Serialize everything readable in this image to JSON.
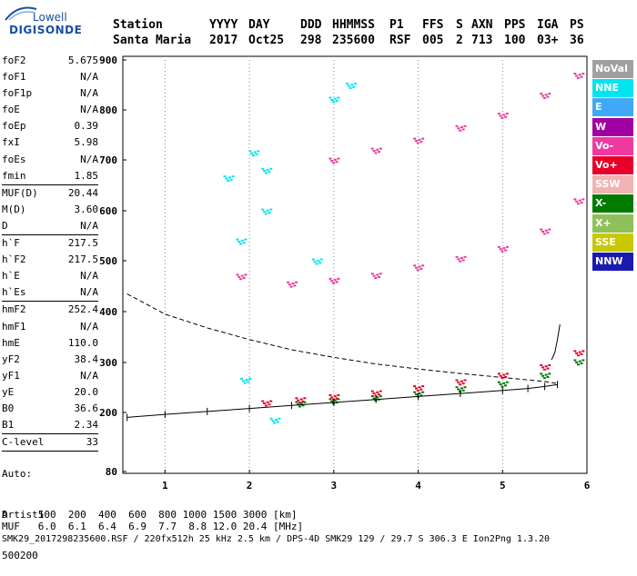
{
  "logo": {
    "line1": "Lowell",
    "line2": "DIGISONDE"
  },
  "header": {
    "labels": [
      "Station",
      "YYYY",
      "DAY",
      "DDD",
      "HHMMSS",
      "P1",
      "FFS",
      "S",
      "AXN",
      "PPS",
      "IGA",
      "PS"
    ],
    "values": [
      "Santa Maria",
      "2017",
      "Oct25",
      "298",
      "235600",
      "RSF",
      "005",
      "2",
      "713",
      "100",
      "03+",
      "36"
    ]
  },
  "parameters": [
    {
      "name": "foF2",
      "value": "5.675"
    },
    {
      "name": "foF1",
      "value": "N/A"
    },
    {
      "name": "foF1p",
      "value": "N/A"
    },
    {
      "name": "foE",
      "value": "N/A"
    },
    {
      "name": "foEp",
      "value": "0.39"
    },
    {
      "name": "fxI",
      "value": "5.98"
    },
    {
      "name": "foEs",
      "value": "N/A"
    },
    {
      "name": "fmin",
      "value": "1.85",
      "sep_after": true
    },
    {
      "name": "MUF(D)",
      "value": "20.44"
    },
    {
      "name": "M(D)",
      "value": "3.60"
    },
    {
      "name": "D",
      "value": "N/A",
      "sep_after": true
    },
    {
      "name": "h`F",
      "value": "217.5"
    },
    {
      "name": "h`F2",
      "value": "217.5"
    },
    {
      "name": "h`E",
      "value": "N/A"
    },
    {
      "name": "h`Es",
      "value": "N/A",
      "sep_after": true
    },
    {
      "name": "hmF2",
      "value": "252.4"
    },
    {
      "name": "hmF1",
      "value": "N/A"
    },
    {
      "name": "hmE",
      "value": "110.0"
    },
    {
      "name": "yF2",
      "value": "38.4"
    },
    {
      "name": "yF1",
      "value": "N/A"
    },
    {
      "name": "yE",
      "value": "20.0"
    },
    {
      "name": "B0",
      "value": "36.6"
    },
    {
      "name": "B1",
      "value": "2.34",
      "sep_after": true
    },
    {
      "name": "C-level",
      "value": "33",
      "sep_after": true
    }
  ],
  "auto": {
    "line1": "Auto:",
    "line2": "Artist5",
    "line3": "500200"
  },
  "legend": [
    {
      "label": "NoVal",
      "bg": "#a0a0a0",
      "fg": "#ffffff"
    },
    {
      "label": "NNE",
      "bg": "#00e5ee",
      "fg": "#ffffff"
    },
    {
      "label": "E",
      "bg": "#3fa9f5",
      "fg": "#ffffff"
    },
    {
      "label": "W",
      "bg": "#a0009f",
      "fg": "#ffffff"
    },
    {
      "label": "Vo-",
      "bg": "#ee3aa0",
      "fg": "#ffffff"
    },
    {
      "label": "Vo+",
      "bg": "#e8002a",
      "fg": "#ffffff"
    },
    {
      "label": "SSW",
      "bg": "#f2b3b3",
      "fg": "#ffffff"
    },
    {
      "label": "X-",
      "bg": "#007a00",
      "fg": "#ffffff"
    },
    {
      "label": "X+",
      "bg": "#8fc05a",
      "fg": "#ffffff"
    },
    {
      "label": "SSE",
      "bg": "#c8c800",
      "fg": "#ffffff"
    },
    {
      "label": "NNW",
      "bg": "#1a1ab0",
      "fg": "#ffffff"
    }
  ],
  "chart_data": {
    "type": "scatter",
    "title": "",
    "xlabel": "",
    "ylabel": "",
    "xlim": [
      0.5,
      6.0
    ],
    "ylim_display": [
      80,
      900
    ],
    "y_scale": "log-like ionogram virtual height (km)",
    "x_ticks": [
      1,
      2,
      3,
      4,
      5,
      6
    ],
    "y_ticks": [
      80,
      200,
      300,
      400,
      500,
      600,
      700,
      800,
      900
    ],
    "grid": "dotted vertical at integer MHz",
    "series": [
      {
        "name": "Vo+",
        "color": "#e8002a",
        "points": [
          [
            2.2,
            220
          ],
          [
            2.6,
            226
          ],
          [
            3.0,
            232
          ],
          [
            3.5,
            240
          ],
          [
            4.0,
            250
          ],
          [
            4.5,
            262
          ],
          [
            5.0,
            275
          ],
          [
            5.5,
            292
          ],
          [
            5.9,
            320
          ]
        ]
      },
      {
        "name": "X-",
        "color": "#007a00",
        "points": [
          [
            2.6,
            218
          ],
          [
            3.0,
            224
          ],
          [
            3.5,
            230
          ],
          [
            4.0,
            238
          ],
          [
            4.5,
            248
          ],
          [
            5.0,
            258
          ],
          [
            5.5,
            275
          ],
          [
            5.9,
            302
          ]
        ]
      },
      {
        "name": "Vo-",
        "color": "#ee3aa0",
        "points": [
          [
            1.9,
            470
          ],
          [
            2.5,
            455
          ],
          [
            3.0,
            462
          ],
          [
            3.5,
            472
          ],
          [
            4.0,
            488
          ],
          [
            4.5,
            505
          ],
          [
            5.0,
            525
          ],
          [
            5.5,
            560
          ],
          [
            5.9,
            620
          ],
          [
            3.0,
            700
          ],
          [
            3.5,
            720
          ],
          [
            4.0,
            740
          ],
          [
            4.5,
            765
          ],
          [
            5.0,
            790
          ],
          [
            5.5,
            830
          ],
          [
            5.9,
            870
          ]
        ]
      },
      {
        "name": "NNE",
        "color": "#00e5ee",
        "points": [
          [
            1.95,
            265
          ],
          [
            2.2,
            600
          ],
          [
            2.2,
            680
          ],
          [
            1.75,
            665
          ],
          [
            2.05,
            715
          ],
          [
            3.2,
            850
          ],
          [
            3.0,
            822
          ],
          [
            2.8,
            500
          ],
          [
            1.9,
            540
          ],
          [
            2.3,
            185
          ]
        ]
      }
    ],
    "profile_line": {
      "name": "true height profile",
      "points": [
        [
          0.55,
          190
        ],
        [
          1.0,
          196
        ],
        [
          1.5,
          202
        ],
        [
          2.0,
          208
        ],
        [
          2.5,
          214
        ],
        [
          3.0,
          220
        ],
        [
          3.5,
          226
        ],
        [
          4.0,
          232
        ],
        [
          4.5,
          238
        ],
        [
          5.0,
          244
        ],
        [
          5.3,
          248
        ],
        [
          5.5,
          252
        ],
        [
          5.65,
          256
        ]
      ]
    },
    "dashed_curve": {
      "points": [
        [
          0.55,
          435
        ],
        [
          1.0,
          395
        ],
        [
          1.5,
          368
        ],
        [
          2.0,
          345
        ],
        [
          2.5,
          325
        ],
        [
          3.0,
          310
        ],
        [
          3.5,
          297
        ],
        [
          4.0,
          287
        ],
        [
          4.5,
          278
        ],
        [
          5.0,
          270
        ],
        [
          5.5,
          262
        ],
        [
          5.65,
          258
        ]
      ]
    },
    "foF2_trace": {
      "points": [
        [
          5.58,
          305
        ],
        [
          5.62,
          320
        ],
        [
          5.65,
          345
        ],
        [
          5.68,
          375
        ]
      ]
    }
  },
  "footer": {
    "d_row": "D     100  200  400  600  800 1000 1500 3000 [km]",
    "muf_row": "MUF   6.0  6.1  6.4  6.9  7.7  8.8 12.0 20.4 [MHz]",
    "info": "SMK29_2017298235600.RSF / 220fx512h 25 kHz 2.5 km / DPS-4D SMK29 129 / 29.7 S 306.3 E Ion2Png 1.3.20"
  }
}
